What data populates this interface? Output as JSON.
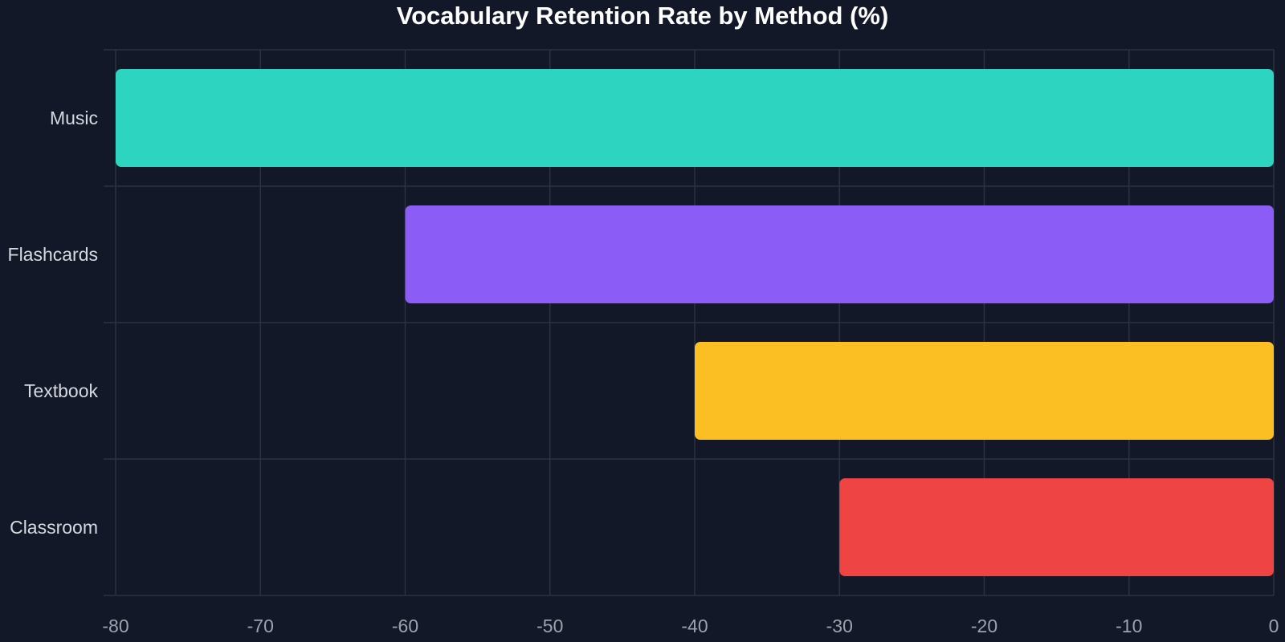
{
  "chart_data": {
    "type": "bar",
    "orientation": "horizontal",
    "title": "Vocabulary Retention Rate by Method (%)",
    "xlabel": "",
    "ylabel": "",
    "categories": [
      "Music",
      "Flashcards",
      "Textbook",
      "Classroom"
    ],
    "values": [
      -80,
      -60,
      -40,
      -30
    ],
    "colors": [
      "#2dd4bf",
      "#8b5cf6",
      "#fbbf24",
      "#ef4444"
    ],
    "xlim": [
      -80,
      0
    ],
    "xticks": [
      -80,
      -70,
      -60,
      -50,
      -40,
      -30,
      -20,
      -10,
      0
    ],
    "grid": true,
    "legend": "none"
  },
  "theme": {
    "background": "#121827",
    "grid_color": "#2a3240",
    "category_label_color": "#d5d9e0",
    "tick_label_color": "#9ca3af",
    "title_color": "#ffffff"
  }
}
